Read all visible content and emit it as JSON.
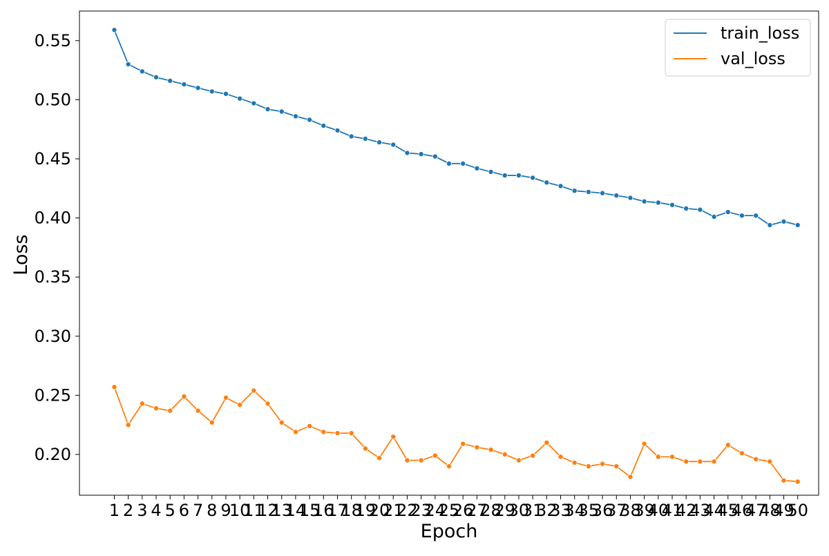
{
  "chart_data": {
    "type": "line",
    "title": "",
    "xlabel": "Epoch",
    "ylabel": "Loss",
    "x": [
      1,
      2,
      3,
      4,
      5,
      6,
      7,
      8,
      9,
      10,
      11,
      12,
      13,
      14,
      15,
      16,
      17,
      18,
      19,
      20,
      21,
      22,
      23,
      24,
      25,
      26,
      27,
      28,
      29,
      30,
      31,
      32,
      33,
      34,
      35,
      36,
      37,
      38,
      39,
      40,
      41,
      42,
      43,
      44,
      45,
      46,
      47,
      48,
      49,
      50
    ],
    "xticks": [
      "1",
      "2",
      "3",
      "4",
      "5",
      "6",
      "7",
      "8",
      "9",
      "10",
      "11",
      "12",
      "13",
      "14",
      "15",
      "16",
      "17",
      "18",
      "19",
      "20",
      "21",
      "22",
      "23",
      "24",
      "25",
      "26",
      "27",
      "28",
      "29",
      "30",
      "31",
      "32",
      "33",
      "34",
      "35",
      "36",
      "37",
      "38",
      "39",
      "40",
      "41",
      "42",
      "43",
      "44",
      "45",
      "46",
      "47",
      "48",
      "49",
      "50"
    ],
    "yticks": [
      "0.20",
      "0.25",
      "0.30",
      "0.35",
      "0.40",
      "0.45",
      "0.50",
      "0.55"
    ],
    "ytick_values": [
      0.2,
      0.25,
      0.3,
      0.35,
      0.4,
      0.45,
      0.5,
      0.55
    ],
    "ylim": [
      0.1655,
      0.575
    ],
    "xlim": [
      -1.5,
      51.5
    ],
    "grid": false,
    "legend_position": "top-right",
    "series": [
      {
        "name": "train_loss",
        "color": "#1f77b4",
        "marker": "circle",
        "values": [
          0.559,
          0.53,
          0.524,
          0.519,
          0.516,
          0.513,
          0.51,
          0.507,
          0.505,
          0.501,
          0.497,
          0.492,
          0.49,
          0.486,
          0.483,
          0.478,
          0.474,
          0.469,
          0.467,
          0.464,
          0.462,
          0.455,
          0.454,
          0.452,
          0.446,
          0.446,
          0.442,
          0.439,
          0.436,
          0.436,
          0.434,
          0.43,
          0.427,
          0.423,
          0.422,
          0.421,
          0.419,
          0.417,
          0.414,
          0.413,
          0.411,
          0.408,
          0.407,
          0.401,
          0.405,
          0.402,
          0.402,
          0.394,
          0.397,
          0.394
        ]
      },
      {
        "name": "val_loss",
        "color": "#ff7f0e",
        "marker": "circle",
        "values": [
          0.257,
          0.225,
          0.243,
          0.239,
          0.237,
          0.249,
          0.237,
          0.227,
          0.248,
          0.242,
          0.254,
          0.243,
          0.227,
          0.219,
          0.224,
          0.219,
          0.218,
          0.218,
          0.205,
          0.197,
          0.215,
          0.195,
          0.195,
          0.199,
          0.19,
          0.209,
          0.206,
          0.204,
          0.2,
          0.195,
          0.199,
          0.21,
          0.198,
          0.193,
          0.19,
          0.192,
          0.19,
          0.181,
          0.209,
          0.198,
          0.198,
          0.194,
          0.194,
          0.194,
          0.208,
          0.201,
          0.196,
          0.194,
          0.178,
          0.177
        ]
      }
    ]
  }
}
